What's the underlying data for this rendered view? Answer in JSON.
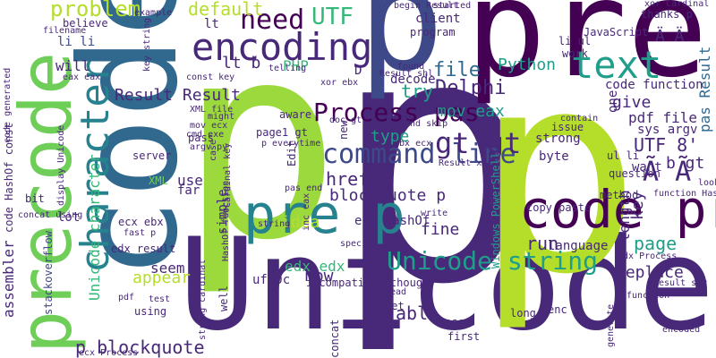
{
  "words": {
    "p_big": "p",
    "pre_top": "pre",
    "p_top": "p",
    "code_big": "code",
    "p_second": "p",
    "unicode": "Unicode",
    "precode": "precode",
    "encoding": "encoding",
    "pre_p": "pre p",
    "code_pre": "code pre",
    "text": "text",
    "character": "character",
    "command_line": "command line",
    "unicode_string": "Unicode string",
    "process_pas": "Process pas",
    "need": "need",
    "utf": "UTF",
    "problem": "problem",
    "default": "default",
    "gt_gt": "gt gt",
    "result_result": "Result Result",
    "delphi": "Delphi",
    "python": "Python",
    "file": "file",
    "lt_b": "lt b",
    "php": "PHP",
    "href": "href",
    "blockquote_p": "blockquote p",
    "p_blockquote": "p blockquote",
    "end_hashof": "end HashOf",
    "a_umlaut_1": "Ä Ä",
    "a_umlaut_2": "Ã Ã",
    "utf8": "UTF 8'",
    "b_gt": "b gt",
    "pas_result": "pas Result",
    "page": "page",
    "replace": "replace",
    "run": "run",
    "language": "language",
    "mov_eax": "mov eax",
    "try": "try",
    "decode": "decode",
    "give": "give",
    "pdf_file": "pdf file",
    "sys_argv": "sys argv",
    "code_function": "code function",
    "unicode_character": "Unicode character",
    "assembler": "assembler",
    "code_hashof_const": "code HashOf const",
    "edx_edx": "edx edx",
    "now": "now",
    "appear": "appear",
    "seem": "seem",
    "uff0c": "uff0c",
    "able": "able",
    "fine": "fine",
    "idea": "idea",
    "windows_powershell": "Windows PowerShell",
    "stackoverflow": "stackoverflow",
    "incompatible_though": "incompatible though",
    "length": "length",
    "key": "key",
    "encoded": "encoded",
    "long": "long",
    "enc": "enc",
    "based": "based",
    "will": "will",
    "li_li": "li li",
    "believe": "believe",
    "filename": "filename",
    "eax_eax": "eax eax",
    "server": "server",
    "example": "example",
    "begin_result": "begin Result",
    "client": "client",
    "program": "program",
    "javascript": "JavaScript",
    "thanks_p": "thanks p",
    "xor_cardinal": "xor Cardinal",
    "li_ul": "li ul",
    "work": "work",
    "const_key": "const key",
    "telling": "telling",
    "xml_file": "XML file",
    "cmd_exe": "cmd exe",
    "mov_ecx": "mov ecx",
    "argv_py": "argv py",
    "pass": "pass",
    "aware": "aware",
    "page1_gt": "page1 gt",
    "p_everytime": "p everytime",
    "edit": "Edit",
    "doc_gt": "doc gt",
    "result_shl": "Result shl",
    "end_skip": "End skip",
    "type": "type",
    "strong": "strong",
    "byte": "byte",
    "ul_li": "ul li",
    "want": "want",
    "question": "question",
    "method": "method",
    "function_hashof": "function HashOf",
    "copy_paste": "copy paste",
    "edx_process": "edx Process",
    "result_shr": "Result shr",
    "xml": "XML",
    "use": "use",
    "far": "far",
    "simple": "simple",
    "lot": "lot",
    "ecx_ebx": "ecx ebx",
    "fast_p": "fast p",
    "edx_result": "edx result",
    "pas_end": "pas end",
    "inc_eax": "inc eax",
    "specify": "specify",
    "write": "write",
    "string": "string",
    "using": "using",
    "test": "test",
    "well": "well",
    "pdf": "pdf",
    "ecx_process": "ecx Process",
    "concat_using": "concat using",
    "display_unicode": "display Unicode",
    "bit": "bit",
    "concat": "concat",
    "first": "first",
    "set": "set",
    "read": "read",
    "generate": "generate",
    "function": "function",
    "look": "look",
    "string_cardinal": "string cardinal",
    "hashof_function": "HashOf function",
    "might": "might",
    "case": "case",
    "cardinal_key": "Cardinal key",
    "new": "new",
    "contain": "contain",
    "issue": "issue",
    "ebx_ecx": "ebx ecx",
    "result_xor": "Result xor",
    "lt": "lt",
    "key_string": "key string",
    "found": "found",
    "way": "way",
    "started": "started",
    "d": "D",
    "one": "one",
    "code_generated": "code generated",
    "xor_ebx": "xor ebx"
  }
}
